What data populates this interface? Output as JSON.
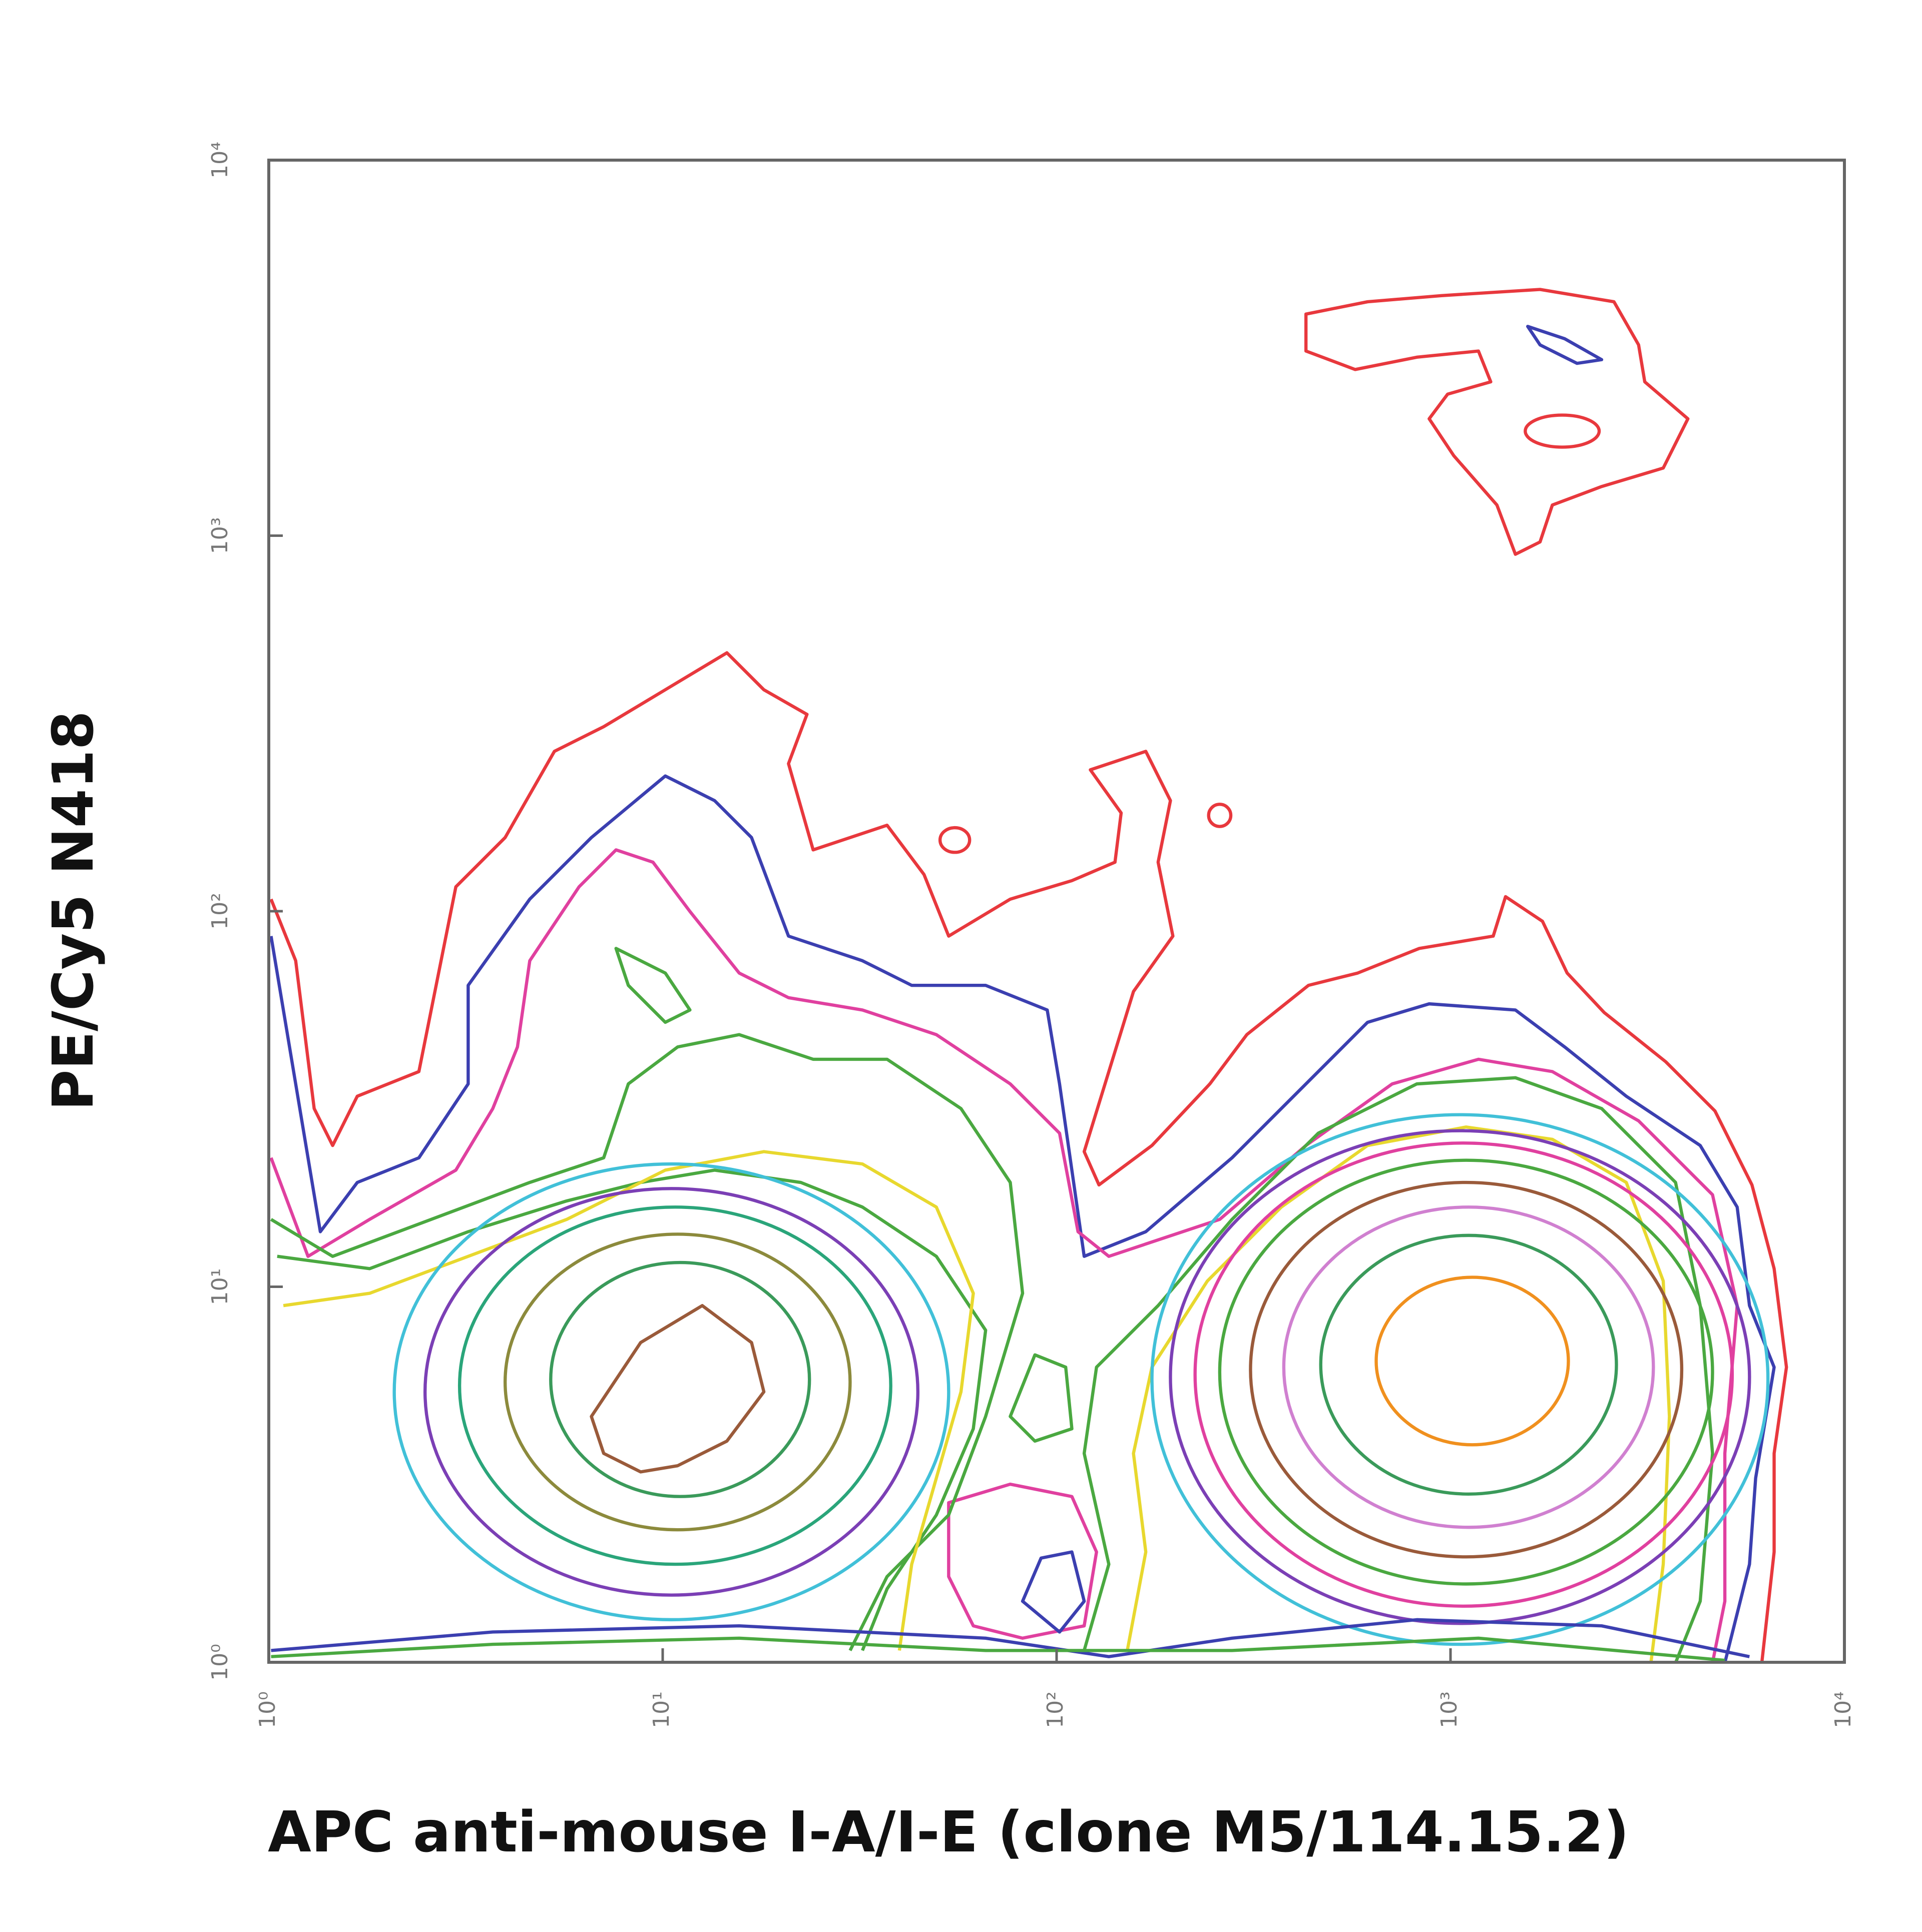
{
  "chart_data": {
    "type": "contour",
    "x_label": "APC anti-mouse I-A/I-E (clone M5/114.15.2)",
    "y_label": "PE/Cy5 N418",
    "xscale": "log",
    "yscale": "log",
    "xlim": [
      1,
      10000
    ],
    "ylim": [
      1,
      10000
    ],
    "xticks": [
      {
        "value": 1,
        "label": "10⁰"
      },
      {
        "value": 10,
        "label": "10¹"
      },
      {
        "value": 100,
        "label": "10²"
      },
      {
        "value": 1000,
        "label": "10³"
      },
      {
        "value": 10000,
        "label": "10⁴"
      }
    ],
    "yticks": [
      {
        "value": 1,
        "label": "10⁰"
      },
      {
        "value": 10,
        "label": "10¹"
      },
      {
        "value": 100,
        "label": "10²"
      },
      {
        "value": 1000,
        "label": "10³"
      },
      {
        "value": 10000,
        "label": "10⁴"
      }
    ]
  }
}
